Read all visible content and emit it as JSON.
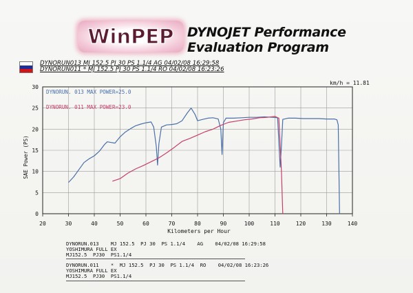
{
  "header": {
    "logo_text": "WinPEP",
    "title_line1": "DYNOJET Performance",
    "title_line2": "Evaluation Program"
  },
  "runs_header": {
    "line1": "DYNORUN013   MJ 152.5  PJ 30  PS 1.1/4     AG   04/02/08 16:29:58",
    "line2": "DYNORUN011   *  MJ 152.5  PJ 30  PS 1.1/4 RO   04/02/08 16:23:26"
  },
  "kmh_label": "km/h = 11.81",
  "colors": {
    "series_013": "#4a6fa8",
    "series_011": "#c4406a",
    "grid": "#9a9a9a",
    "plot_border": "#222222"
  },
  "notes": {
    "run1": "DYNORUN.013    MJ 152.5  PJ 30  PS 1.1/4    AG    04/02/08 16:29:58\nYOSHIMURA FULL EX\nMJ152.5  PJ30  PS1.1/4",
    "run2": "DYNORUN.011    *  MJ 152.5  PJ 30  PS 1.1/4  RO    04/02/08 16:23:26\nYOSHIMURA FULL EX\nMJ152.5  PJ30  PS1.1/4"
  },
  "chart_data": {
    "type": "line",
    "title": "",
    "xlabel": "Kilometers per Hour",
    "ylabel": "SAE Power (PS)",
    "xlim": [
      20,
      140
    ],
    "ylim": [
      0,
      30
    ],
    "x_ticks": [
      20,
      30,
      40,
      50,
      60,
      70,
      80,
      90,
      100,
      110,
      120,
      130,
      140
    ],
    "y_ticks": [
      0,
      5,
      10,
      15,
      20,
      25,
      30
    ],
    "grid": true,
    "legend_position": "top-left",
    "series": [
      {
        "name": "DYNORUN. 013",
        "legend_label": "DYNORUN. 013  MAX POWER=25.0",
        "color_key": "series_013",
        "points": [
          [
            30,
            7.4
          ],
          [
            32,
            8.7
          ],
          [
            34,
            10.4
          ],
          [
            36,
            12.1
          ],
          [
            38,
            13.0
          ],
          [
            40,
            13.7
          ],
          [
            42,
            14.8
          ],
          [
            44,
            16.4
          ],
          [
            45,
            17.0
          ],
          [
            46,
            16.9
          ],
          [
            48,
            16.7
          ],
          [
            50,
            18.2
          ],
          [
            52,
            19.3
          ],
          [
            54,
            20.1
          ],
          [
            56,
            20.8
          ],
          [
            58,
            21.2
          ],
          [
            60,
            21.5
          ],
          [
            62,
            21.7
          ],
          [
            63,
            20.5
          ],
          [
            64,
            16.0
          ],
          [
            64.5,
            11.5
          ],
          [
            65,
            16.5
          ],
          [
            66,
            20.5
          ],
          [
            68,
            21.0
          ],
          [
            70,
            21.1
          ],
          [
            72,
            21.3
          ],
          [
            74,
            22.0
          ],
          [
            76,
            23.8
          ],
          [
            77.5,
            25.0
          ],
          [
            79,
            23.5
          ],
          [
            80,
            22.0
          ],
          [
            82,
            22.3
          ],
          [
            84,
            22.6
          ],
          [
            86,
            22.7
          ],
          [
            88,
            22.4
          ],
          [
            89,
            20.0
          ],
          [
            89.5,
            14.0
          ],
          [
            90,
            21.5
          ],
          [
            91,
            22.6
          ],
          [
            94,
            22.6
          ],
          [
            97,
            22.7
          ],
          [
            100,
            22.8
          ],
          [
            103,
            22.8
          ],
          [
            106,
            22.9
          ],
          [
            109,
            22.8
          ],
          [
            111,
            22.7
          ],
          [
            111.5,
            17.0
          ],
          [
            112,
            11.0
          ],
          [
            112.5,
            16.0
          ],
          [
            113,
            22.3
          ],
          [
            115,
            22.6
          ],
          [
            118,
            22.6
          ],
          [
            121,
            22.5
          ],
          [
            124,
            22.5
          ],
          [
            127,
            22.5
          ],
          [
            130,
            22.4
          ],
          [
            133,
            22.4
          ],
          [
            134,
            22.2
          ],
          [
            134.5,
            21.0
          ],
          [
            135,
            0.0
          ]
        ]
      },
      {
        "name": "DYNORUN. 011",
        "legend_label": "DYNORUN. 011  MAX POWER=23.0",
        "color_key": "series_011",
        "points": [
          [
            47,
            7.7
          ],
          [
            50,
            8.3
          ],
          [
            53,
            9.6
          ],
          [
            56,
            10.6
          ],
          [
            59,
            11.4
          ],
          [
            62,
            12.3
          ],
          [
            65,
            13.2
          ],
          [
            68,
            14.4
          ],
          [
            71,
            15.7
          ],
          [
            74,
            17.1
          ],
          [
            77,
            17.8
          ],
          [
            80,
            18.6
          ],
          [
            83,
            19.4
          ],
          [
            86,
            20.0
          ],
          [
            89,
            20.9
          ],
          [
            92,
            21.6
          ],
          [
            95,
            21.9
          ],
          [
            98,
            22.2
          ],
          [
            101,
            22.4
          ],
          [
            104,
            22.7
          ],
          [
            107,
            22.8
          ],
          [
            110,
            23.0
          ],
          [
            111.5,
            22.6
          ],
          [
            112.5,
            10.0
          ],
          [
            113,
            0.0
          ]
        ]
      }
    ]
  }
}
